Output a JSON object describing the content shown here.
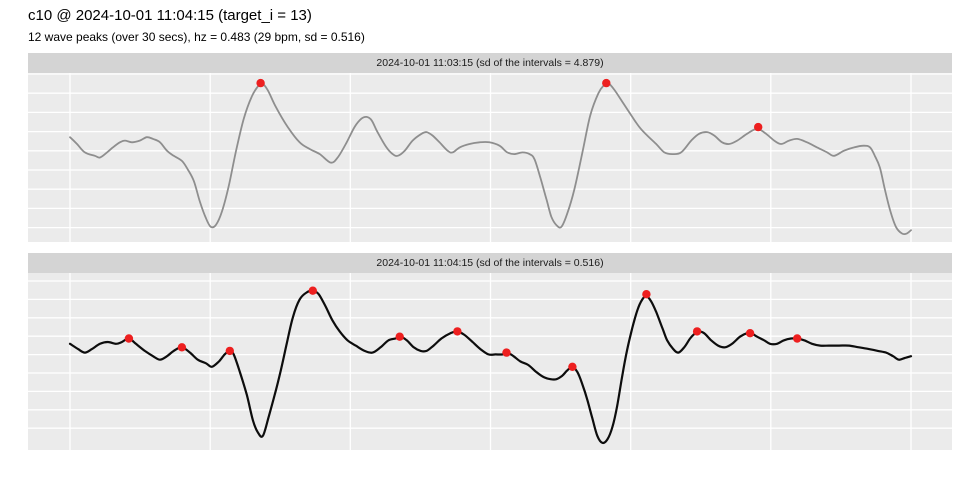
{
  "header": {
    "title": "c10 @ 2024-10-01 11:04:15 (target_i = 13)",
    "subtitle": "12 wave peaks (over 30 secs), hz = 0.483 (29 bpm, sd = 0.516)"
  },
  "colors": {
    "strip_bg": "#d4d4d4",
    "strip_text": "#1a1a1a",
    "panel_bg": "#ebebeb",
    "grid": "#ffffff",
    "peak_dot": "#ed1f1f",
    "series_gray": "#8e8e8e",
    "series_black": "#0d0d0d"
  },
  "chart_data": [
    {
      "type": "line",
      "title": "2024-10-01 11:03:15 (sd of the intervals = 4.879)",
      "xlabel": "",
      "ylabel": "",
      "x_unit": "seconds",
      "xlim": [
        0,
        30
      ],
      "ylim": [
        0,
        1
      ],
      "x_gridlines": [
        0,
        5,
        10,
        15,
        20,
        25,
        30
      ],
      "grid": true,
      "legend_position": "none",
      "line_color": "#8e8e8e",
      "marker_color": "#ed1f1f",
      "points": [
        [
          0,
          0.62
        ],
        [
          0.25,
          0.58
        ],
        [
          0.53,
          0.53
        ],
        [
          0.89,
          0.51
        ],
        [
          1.07,
          0.5
        ],
        [
          1.32,
          0.53
        ],
        [
          1.53,
          0.56
        ],
        [
          1.78,
          0.59
        ],
        [
          1.96,
          0.6
        ],
        [
          2.21,
          0.59
        ],
        [
          2.49,
          0.6
        ],
        [
          2.74,
          0.62
        ],
        [
          2.96,
          0.61
        ],
        [
          3.21,
          0.59
        ],
        [
          3.46,
          0.54
        ],
        [
          3.7,
          0.51
        ],
        [
          3.99,
          0.48
        ],
        [
          4.2,
          0.43
        ],
        [
          4.42,
          0.36
        ],
        [
          4.63,
          0.24
        ],
        [
          4.85,
          0.14
        ],
        [
          5.02,
          0.09
        ],
        [
          5.2,
          0.1
        ],
        [
          5.42,
          0.18
        ],
        [
          5.66,
          0.33
        ],
        [
          5.91,
          0.53
        ],
        [
          6.2,
          0.73
        ],
        [
          6.48,
          0.86
        ],
        [
          6.7,
          0.92
        ],
        [
          6.84,
          0.94
        ],
        [
          7.05,
          0.9
        ],
        [
          7.34,
          0.8
        ],
        [
          7.77,
          0.68
        ],
        [
          8.19,
          0.59
        ],
        [
          8.55,
          0.55
        ],
        [
          8.91,
          0.52
        ],
        [
          9.3,
          0.47
        ],
        [
          9.55,
          0.5
        ],
        [
          9.87,
          0.59
        ],
        [
          10.15,
          0.68
        ],
        [
          10.4,
          0.73
        ],
        [
          10.58,
          0.74
        ],
        [
          10.76,
          0.72
        ],
        [
          10.97,
          0.65
        ],
        [
          11.29,
          0.56
        ],
        [
          11.51,
          0.52
        ],
        [
          11.69,
          0.51
        ],
        [
          11.94,
          0.54
        ],
        [
          12.22,
          0.6
        ],
        [
          12.54,
          0.64
        ],
        [
          12.72,
          0.65
        ],
        [
          12.93,
          0.63
        ],
        [
          13.18,
          0.59
        ],
        [
          13.47,
          0.54
        ],
        [
          13.65,
          0.53
        ],
        [
          13.9,
          0.56
        ],
        [
          14.25,
          0.58
        ],
        [
          14.61,
          0.59
        ],
        [
          14.96,
          0.59
        ],
        [
          15.32,
          0.57
        ],
        [
          15.6,
          0.53
        ],
        [
          15.85,
          0.52
        ],
        [
          16.14,
          0.53
        ],
        [
          16.39,
          0.52
        ],
        [
          16.57,
          0.49
        ],
        [
          16.78,
          0.38
        ],
        [
          17,
          0.25
        ],
        [
          17.17,
          0.15
        ],
        [
          17.35,
          0.1
        ],
        [
          17.53,
          0.09
        ],
        [
          17.74,
          0.17
        ],
        [
          17.99,
          0.31
        ],
        [
          18.28,
          0.53
        ],
        [
          18.56,
          0.75
        ],
        [
          18.85,
          0.88
        ],
        [
          19.06,
          0.93
        ],
        [
          19.2,
          0.94
        ],
        [
          19.42,
          0.9
        ],
        [
          19.7,
          0.83
        ],
        [
          20.02,
          0.75
        ],
        [
          20.31,
          0.68
        ],
        [
          20.59,
          0.63
        ],
        [
          20.91,
          0.58
        ],
        [
          21.2,
          0.53
        ],
        [
          21.48,
          0.52
        ],
        [
          21.8,
          0.53
        ],
        [
          22.16,
          0.6
        ],
        [
          22.44,
          0.64
        ],
        [
          22.73,
          0.65
        ],
        [
          22.98,
          0.63
        ],
        [
          23.26,
          0.59
        ],
        [
          23.51,
          0.58
        ],
        [
          23.8,
          0.6
        ],
        [
          24.15,
          0.64
        ],
        [
          24.51,
          0.67
        ],
        [
          24.83,
          0.64
        ],
        [
          25.12,
          0.6
        ],
        [
          25.37,
          0.58
        ],
        [
          25.65,
          0.6
        ],
        [
          25.94,
          0.61
        ],
        [
          26.29,
          0.59
        ],
        [
          26.65,
          0.56
        ],
        [
          27.01,
          0.53
        ],
        [
          27.26,
          0.51
        ],
        [
          27.61,
          0.54
        ],
        [
          27.97,
          0.56
        ],
        [
          28.32,
          0.57
        ],
        [
          28.54,
          0.56
        ],
        [
          28.71,
          0.51
        ],
        [
          28.89,
          0.44
        ],
        [
          29.07,
          0.31
        ],
        [
          29.25,
          0.19
        ],
        [
          29.46,
          0.09
        ],
        [
          29.68,
          0.05
        ],
        [
          29.85,
          0.05
        ],
        [
          30,
          0.07
        ]
      ],
      "peaks": [
        [
          6.8,
          0.94
        ],
        [
          19.13,
          0.94
        ],
        [
          24.55,
          0.68
        ]
      ]
    },
    {
      "type": "line",
      "title": "2024-10-01 11:04:15 (sd of the intervals = 0.516)",
      "xlabel": "",
      "ylabel": "",
      "x_unit": "seconds",
      "xlim": [
        0,
        30
      ],
      "ylim": [
        0,
        1
      ],
      "x_gridlines": [
        0,
        5,
        10,
        15,
        20,
        25,
        30
      ],
      "grid": true,
      "legend_position": "none",
      "line_color": "#0d0d0d",
      "marker_color": "#ed1f1f",
      "points": [
        [
          0,
          0.6
        ],
        [
          0.29,
          0.57
        ],
        [
          0.53,
          0.55
        ],
        [
          0.78,
          0.57
        ],
        [
          1.07,
          0.6
        ],
        [
          1.35,
          0.61
        ],
        [
          1.64,
          0.6
        ],
        [
          1.85,
          0.61
        ],
        [
          2.1,
          0.63
        ],
        [
          2.35,
          0.6
        ],
        [
          2.67,
          0.56
        ],
        [
          2.96,
          0.53
        ],
        [
          3.21,
          0.51
        ],
        [
          3.46,
          0.53
        ],
        [
          3.7,
          0.56
        ],
        [
          3.99,
          0.58
        ],
        [
          4.28,
          0.55
        ],
        [
          4.56,
          0.51
        ],
        [
          4.85,
          0.49
        ],
        [
          5.06,
          0.47
        ],
        [
          5.31,
          0.5
        ],
        [
          5.52,
          0.54
        ],
        [
          5.7,
          0.56
        ],
        [
          5.84,
          0.54
        ],
        [
          6.06,
          0.44
        ],
        [
          6.31,
          0.31
        ],
        [
          6.52,
          0.17
        ],
        [
          6.7,
          0.1
        ],
        [
          6.88,
          0.08
        ],
        [
          7.09,
          0.19
        ],
        [
          7.3,
          0.31
        ],
        [
          7.52,
          0.45
        ],
        [
          7.73,
          0.6
        ],
        [
          7.95,
          0.75
        ],
        [
          8.19,
          0.85
        ],
        [
          8.44,
          0.89
        ],
        [
          8.66,
          0.9
        ],
        [
          8.87,
          0.88
        ],
        [
          9.12,
          0.81
        ],
        [
          9.37,
          0.73
        ],
        [
          9.62,
          0.67
        ],
        [
          9.9,
          0.62
        ],
        [
          10.19,
          0.59
        ],
        [
          10.51,
          0.56
        ],
        [
          10.79,
          0.55
        ],
        [
          11.08,
          0.58
        ],
        [
          11.36,
          0.62
        ],
        [
          11.61,
          0.63
        ],
        [
          11.79,
          0.64
        ],
        [
          12.01,
          0.62
        ],
        [
          12.26,
          0.58
        ],
        [
          12.51,
          0.56
        ],
        [
          12.72,
          0.56
        ],
        [
          12.97,
          0.59
        ],
        [
          13.25,
          0.63
        ],
        [
          13.57,
          0.66
        ],
        [
          13.82,
          0.67
        ],
        [
          14.07,
          0.65
        ],
        [
          14.36,
          0.61
        ],
        [
          14.64,
          0.57
        ],
        [
          14.93,
          0.54
        ],
        [
          15.18,
          0.54
        ],
        [
          15.43,
          0.54
        ],
        [
          15.6,
          0.55
        ],
        [
          15.82,
          0.53
        ],
        [
          16.07,
          0.5
        ],
        [
          16.35,
          0.48
        ],
        [
          16.64,
          0.44
        ],
        [
          16.92,
          0.41
        ],
        [
          17.14,
          0.4
        ],
        [
          17.35,
          0.4
        ],
        [
          17.56,
          0.42
        ],
        [
          17.74,
          0.45
        ],
        [
          17.92,
          0.47
        ],
        [
          18.1,
          0.44
        ],
        [
          18.28,
          0.37
        ],
        [
          18.46,
          0.28
        ],
        [
          18.63,
          0.18
        ],
        [
          18.81,
          0.08
        ],
        [
          18.99,
          0.04
        ],
        [
          19.17,
          0.06
        ],
        [
          19.35,
          0.13
        ],
        [
          19.52,
          0.25
        ],
        [
          19.7,
          0.42
        ],
        [
          19.88,
          0.57
        ],
        [
          20.06,
          0.69
        ],
        [
          20.24,
          0.79
        ],
        [
          20.41,
          0.85
        ],
        [
          20.56,
          0.87
        ],
        [
          20.73,
          0.84
        ],
        [
          20.91,
          0.78
        ],
        [
          21.13,
          0.69
        ],
        [
          21.3,
          0.62
        ],
        [
          21.52,
          0.57
        ],
        [
          21.7,
          0.55
        ],
        [
          21.91,
          0.58
        ],
        [
          22.12,
          0.63
        ],
        [
          22.3,
          0.66
        ],
        [
          22.41,
          0.67
        ],
        [
          22.62,
          0.66
        ],
        [
          22.87,
          0.62
        ],
        [
          23.12,
          0.59
        ],
        [
          23.37,
          0.58
        ],
        [
          23.62,
          0.6
        ],
        [
          23.9,
          0.64
        ],
        [
          24.15,
          0.66
        ],
        [
          24.3,
          0.66
        ],
        [
          24.51,
          0.64
        ],
        [
          24.76,
          0.62
        ],
        [
          24.97,
          0.6
        ],
        [
          25.22,
          0.6
        ],
        [
          25.47,
          0.62
        ],
        [
          25.72,
          0.63
        ],
        [
          25.94,
          0.63
        ],
        [
          26.19,
          0.62
        ],
        [
          26.47,
          0.6
        ],
        [
          26.76,
          0.59
        ],
        [
          27.08,
          0.59
        ],
        [
          27.43,
          0.59
        ],
        [
          27.79,
          0.59
        ],
        [
          28.14,
          0.58
        ],
        [
          28.5,
          0.57
        ],
        [
          28.82,
          0.56
        ],
        [
          29.11,
          0.55
        ],
        [
          29.36,
          0.53
        ],
        [
          29.57,
          0.51
        ],
        [
          29.78,
          0.52
        ],
        [
          30,
          0.53
        ]
      ],
      "peaks": [
        [
          2.1,
          0.63
        ],
        [
          3.99,
          0.58
        ],
        [
          5.7,
          0.56
        ],
        [
          8.66,
          0.9
        ],
        [
          11.76,
          0.64
        ],
        [
          13.82,
          0.67
        ],
        [
          15.57,
          0.55
        ],
        [
          17.92,
          0.47
        ],
        [
          20.56,
          0.88
        ],
        [
          22.37,
          0.67
        ],
        [
          24.26,
          0.66
        ],
        [
          25.94,
          0.63
        ]
      ]
    }
  ]
}
